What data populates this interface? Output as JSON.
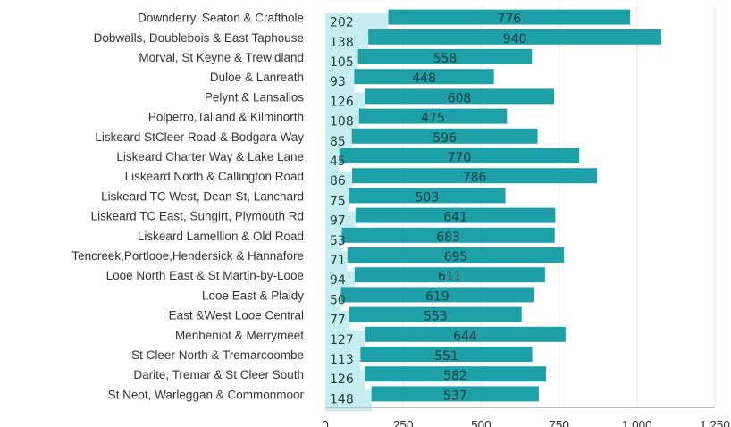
{
  "chart_data": {
    "type": "bar",
    "orientation": "horizontal",
    "stacking": "overlapped",
    "categories": [
      "Downderry, Seaton & Crafthole",
      "Dobwalls, Doublebois & East Taphouse",
      "Morval, St Keyne & Trewidland",
      "Duloe & Lanreath",
      "Pelynt & Lansallos",
      "Polperro,Talland & Kilminorth",
      "Liskeard StCleer Road & Bodgara Way",
      "Liskeard Charter Way & Lake Lane",
      "Liskeard North & Callington Road",
      "Liskeard TC West, Dean St, Lanchard",
      "Liskeard TC East, Sungirt, Plymouth Rd",
      "Liskeard Lamellion & Old Road",
      "Tencreek,Portlooe,Hendersick & Hannafore",
      "Looe North East & St Martin-by-Looe",
      "Looe East & Plaidy",
      "East &West Looe Central",
      "Menheniot & Merrymeet",
      "St Cleer North & Tremarcoombe",
      "Darite, Tremar & St Cleer South",
      "St Neot, Warleggan & Commonmoor"
    ],
    "series": [
      {
        "color": "#c6eef0",
        "values": [
          202,
          138,
          105,
          93,
          126,
          108,
          85,
          45,
          86,
          75,
          97,
          53,
          71,
          94,
          50,
          77,
          127,
          113,
          126,
          148
        ]
      },
      {
        "color": "#1ea0a8",
        "values": [
          776,
          940,
          558,
          448,
          608,
          475,
          596,
          770,
          786,
          503,
          641,
          683,
          695,
          611,
          619,
          553,
          644,
          551,
          582,
          537
        ]
      }
    ],
    "xlim": [
      0,
      1250
    ],
    "xticks": [
      "0",
      "250",
      "500",
      "750",
      "1,000",
      "1,250"
    ],
    "grid": true,
    "legend": "none"
  }
}
